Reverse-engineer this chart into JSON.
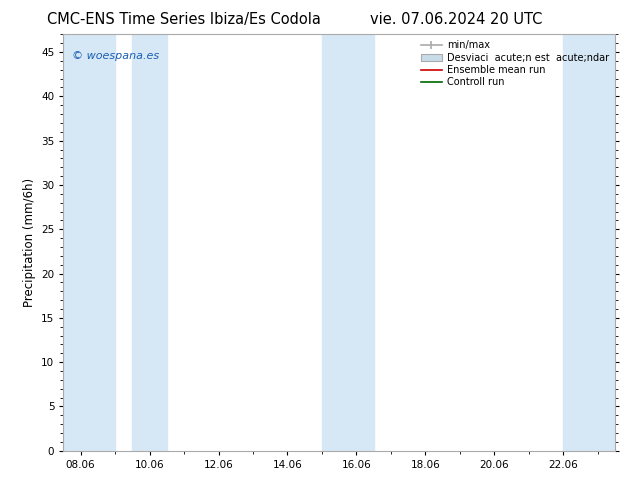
{
  "title_left": "CMC-ENS Time Series Ibiza/Es Codola",
  "title_right": "vie. 07.06.2024 20 UTC",
  "ylabel": "Precipitation (mm/6h)",
  "watermark": "© woespana.es",
  "ylim": [
    0,
    47
  ],
  "yticks": [
    0,
    5,
    10,
    15,
    20,
    25,
    30,
    35,
    40,
    45
  ],
  "xtick_labels": [
    "08.06",
    "10.06",
    "12.06",
    "14.06",
    "16.06",
    "18.06",
    "20.06",
    "22.06"
  ],
  "xtick_positions": [
    8,
    10,
    12,
    14,
    16,
    18,
    20,
    22
  ],
  "xlim": [
    7.5,
    23.5
  ],
  "shaded_bands": [
    [
      7.5,
      9.0
    ],
    [
      9.5,
      10.5
    ],
    [
      15.0,
      16.5
    ],
    [
      22.0,
      23.5
    ]
  ],
  "shaded_color": "#d6e8f5",
  "bg_color": "#ffffff",
  "plot_bg_color": "#ffffff",
  "title_fontsize": 10.5,
  "axis_fontsize": 8.5,
  "tick_fontsize": 7.5,
  "watermark_color": "#1a5fb4",
  "border_color": "#aaaaaa",
  "legend_minmax_color": "#aaaaaa",
  "legend_std_color": "#c8dce8",
  "legend_ens_color": "#cc0000",
  "legend_ctrl_color": "#006600"
}
